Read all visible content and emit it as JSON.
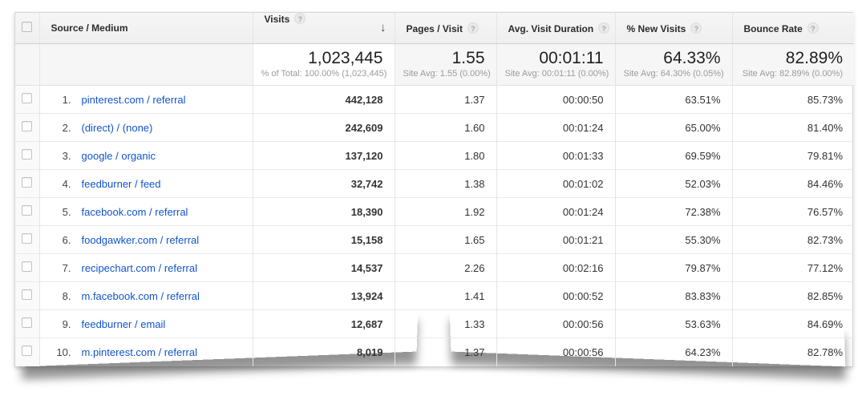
{
  "colors": {
    "link_blue": "#1155cc",
    "header_bg": "#f2f2f2",
    "totals_bg": "#f6f6f6",
    "subtext_gray": "#9b9b9b",
    "text_dark": "#1f1f1f"
  },
  "icons": {
    "help": "?",
    "sort_desc": "↓"
  },
  "table": {
    "columns": [
      {
        "label": "Source / Medium"
      },
      {
        "label": "Visits"
      },
      {
        "label": "Pages / Visit"
      },
      {
        "label": "Avg. Visit Duration"
      },
      {
        "label": "% New Visits"
      },
      {
        "label": "Bounce Rate"
      }
    ],
    "totals": {
      "visits": {
        "value": "1,023,445",
        "sub": "% of Total: 100.00% (1,023,445)"
      },
      "pages": {
        "value": "1.55",
        "sub": "Site Avg: 1.55 (0.00%)"
      },
      "duration": {
        "value": "00:01:11",
        "sub": "Site Avg: 00:01:11 (0.00%)"
      },
      "new_visits": {
        "value": "64.33%",
        "sub": "Site Avg: 64.30% (0.05%)"
      },
      "bounce": {
        "value": "82.89%",
        "sub": "Site Avg: 82.89% (0.00%)"
      }
    },
    "rows": [
      {
        "rank": "1.",
        "source": "pinterest.com / referral",
        "visits": "442,128",
        "pages": "1.37",
        "duration": "00:00:50",
        "new_visits": "63.51%",
        "bounce": "85.73%"
      },
      {
        "rank": "2.",
        "source": "(direct) / (none)",
        "visits": "242,609",
        "pages": "1.60",
        "duration": "00:01:24",
        "new_visits": "65.00%",
        "bounce": "81.40%"
      },
      {
        "rank": "3.",
        "source": "google / organic",
        "visits": "137,120",
        "pages": "1.80",
        "duration": "00:01:33",
        "new_visits": "69.59%",
        "bounce": "79.81%"
      },
      {
        "rank": "4.",
        "source": "feedburner / feed",
        "visits": "32,742",
        "pages": "1.38",
        "duration": "00:01:02",
        "new_visits": "52.03%",
        "bounce": "84.46%"
      },
      {
        "rank": "5.",
        "source": "facebook.com / referral",
        "visits": "18,390",
        "pages": "1.92",
        "duration": "00:01:24",
        "new_visits": "72.38%",
        "bounce": "76.57%"
      },
      {
        "rank": "6.",
        "source": "foodgawker.com / referral",
        "visits": "15,158",
        "pages": "1.65",
        "duration": "00:01:21",
        "new_visits": "55.30%",
        "bounce": "82.73%"
      },
      {
        "rank": "7.",
        "source": "recipechart.com / referral",
        "visits": "14,537",
        "pages": "2.26",
        "duration": "00:02:16",
        "new_visits": "79.87%",
        "bounce": "77.12%"
      },
      {
        "rank": "8.",
        "source": "m.facebook.com / referral",
        "visits": "13,924",
        "pages": "1.41",
        "duration": "00:00:52",
        "new_visits": "83.83%",
        "bounce": "82.85%"
      },
      {
        "rank": "9.",
        "source": "feedburner / email",
        "visits": "12,687",
        "pages": "1.33",
        "duration": "00:00:56",
        "new_visits": "53.63%",
        "bounce": "84.69%"
      },
      {
        "rank": "10.",
        "source": "m.pinterest.com / referral",
        "visits": "8,019",
        "pages": "1.37",
        "duration": "00:00:56",
        "new_visits": "64.23%",
        "bounce": "82.78%"
      }
    ]
  }
}
